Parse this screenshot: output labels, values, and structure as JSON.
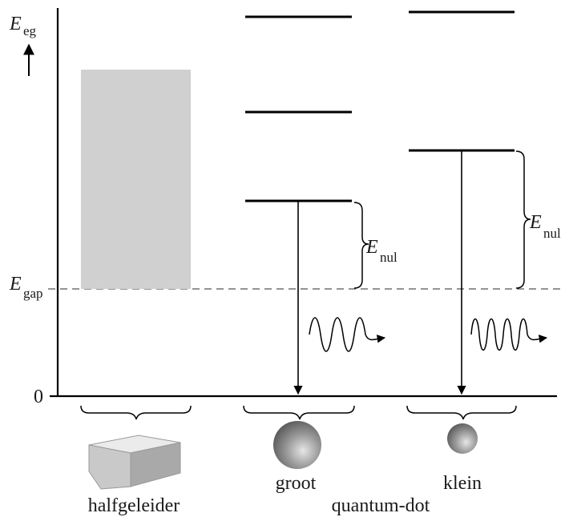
{
  "axis": {
    "y_label_main": "E",
    "y_label_sub": "eg",
    "zero_label": "0",
    "gap_label_main": "E",
    "gap_label_sub": "gap"
  },
  "energy_label": {
    "main": "E",
    "sub": "nul"
  },
  "captions": {
    "bulk": "halfgeleider",
    "large_dot": "groot",
    "small_dot": "klein",
    "group": "quantum-dot"
  },
  "colors": {
    "band": "#d0d0d0",
    "lines": "#000000",
    "dashed": "#555555"
  }
}
